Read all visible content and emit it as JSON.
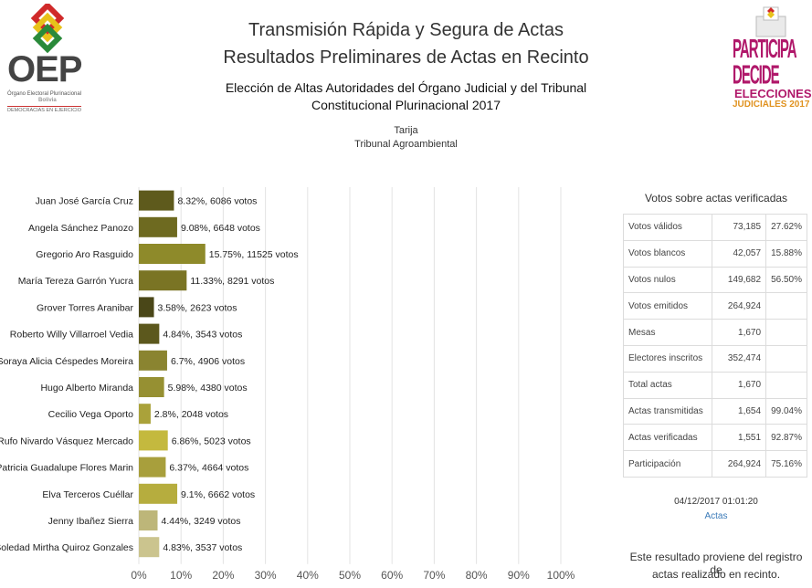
{
  "header": {
    "title_line1": "Transmisión Rápida y Segura de Actas",
    "title_line2": "Resultados Preliminares de Actas en Recinto",
    "election_line1": "Elección de Altas Autoridades del Órgano Judicial y del Tribunal",
    "election_line2": "Constitucional Plurinacional 2017",
    "department": "Tarija",
    "court": "Tribunal Agroambiental"
  },
  "logo_left": {
    "name": "OEP",
    "line1": "Órgano Electoral Plurinacional",
    "line2": "Bolivia",
    "line3": "DEMOCRACIAS EN EJERCICIO"
  },
  "logo_right": {
    "line1": "PARTICIPA DECIDE",
    "line2": "ELECCIONES",
    "line3": "JUDICIALES 2017"
  },
  "chart_data": {
    "type": "bar",
    "orientation": "horizontal",
    "categories": [
      "Juan José García Cruz",
      "Angela Sánchez Panozo",
      "Gregorio Aro Rasguido",
      "María Tereza Garrón Yucra",
      "Grover Torres Aranibar",
      "Roberto Willy Villarroel Vedia",
      "Soraya Alicia Céspedes Moreira",
      "Hugo Alberto Miranda",
      "Cecilio Vega Oporto",
      "Rufo Nivardo Vásquez Mercado",
      "Patricia Guadalupe Flores Marin",
      "Elva Terceros Cuéllar",
      "Jenny Ibañez Sierra",
      "Soledad Mirtha Quiroz Gonzales"
    ],
    "values": [
      8.32,
      9.08,
      15.75,
      11.33,
      3.58,
      4.84,
      6.7,
      5.98,
      2.8,
      6.86,
      6.37,
      9.1,
      4.44,
      4.83
    ],
    "votes": [
      6086,
      6648,
      11525,
      8291,
      2623,
      3543,
      4906,
      4380,
      2048,
      5023,
      4664,
      6662,
      3249,
      3537
    ],
    "data_labels": [
      "8.32%, 6086 votos",
      "9.08%, 6648 votos",
      "15.75%, 11525 votos",
      "11.33%, 8291 votos",
      "3.58%, 2623 votos",
      "4.84%, 3543 votos",
      "6.7%, 4906 votos",
      "5.98%, 4380 votos",
      "2.8%, 2048 votos",
      "6.86%, 5023 votos",
      "6.37%, 4664 votos",
      "9.1%, 6662 votos",
      "4.44%, 3249 votos",
      "4.83%, 3537 votos"
    ],
    "colors": [
      "#5e5a1c",
      "#6e6a20",
      "#8e8a2a",
      "#7a7424",
      "#4a4718",
      "#5c581d",
      "#8a8430",
      "#969032",
      "#aaa23a",
      "#c4b93e",
      "#a89f3c",
      "#b6ad3e",
      "#bdb679",
      "#cbc48e"
    ],
    "xlim": [
      0,
      100
    ],
    "xticks": [
      "0%",
      "10%",
      "20%",
      "30%",
      "40%",
      "50%",
      "60%",
      "70%",
      "80%",
      "90%",
      "100%"
    ],
    "grid": true
  },
  "stats": {
    "title": "Votos sobre actas verificadas",
    "rows": [
      {
        "label": "Votos válidos",
        "value": "73,185",
        "pct": "27.62%"
      },
      {
        "label": "Votos blancos",
        "value": "42,057",
        "pct": "15.88%"
      },
      {
        "label": "Votos nulos",
        "value": "149,682",
        "pct": "56.50%"
      },
      {
        "label": "Votos emitidos",
        "value": "264,924",
        "pct": ""
      },
      {
        "label": "Mesas",
        "value": "1,670",
        "pct": ""
      },
      {
        "label": "Electores inscritos",
        "value": "352,474",
        "pct": ""
      },
      {
        "label": "Total actas",
        "value": "1,670",
        "pct": ""
      },
      {
        "label": "Actas transmitidas",
        "value": "1,654",
        "pct": "99.04%"
      },
      {
        "label": "Actas verificadas",
        "value": "1,551",
        "pct": "92.87%"
      },
      {
        "label": "Participación",
        "value": "264,924",
        "pct": "75.16%"
      }
    ],
    "timestamp": "04/12/2017 01:01:20",
    "link_label": "Actas",
    "note_line1": "Este resultado proviene del registro de",
    "note_line2": "actas realizado en recinto."
  }
}
